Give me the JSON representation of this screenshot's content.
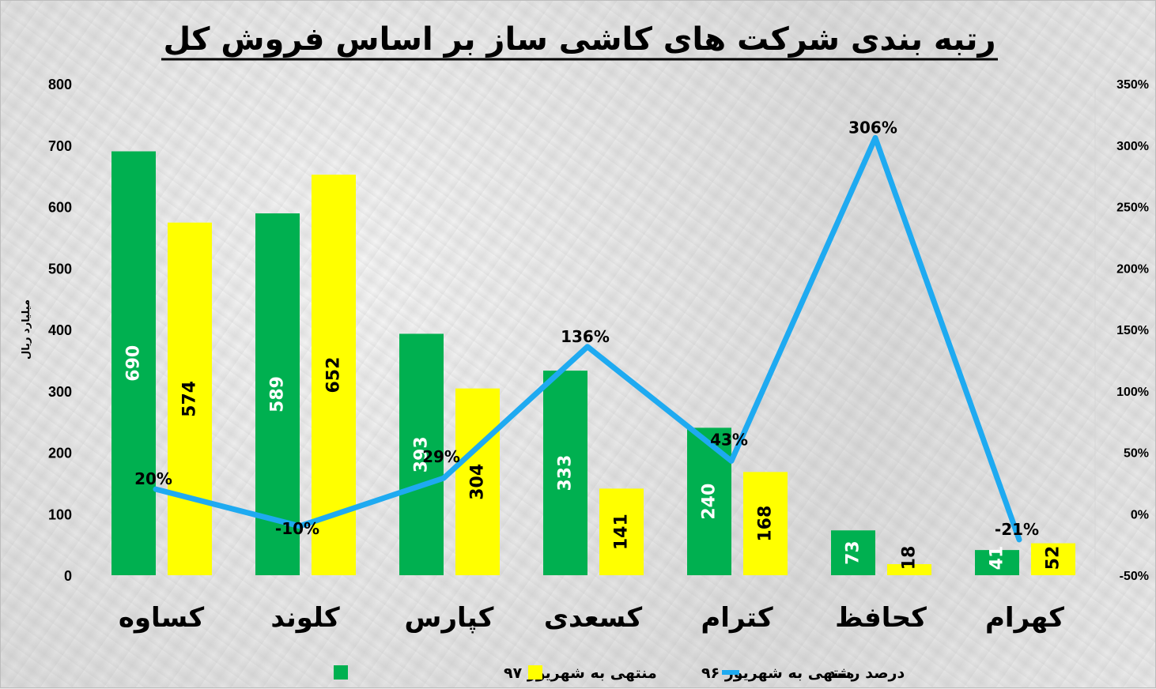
{
  "chart_data": {
    "type": "bar",
    "title": "رتبه بندی شرکت های کاشی ساز بر اساس فروش کل",
    "ylabel": "میلیارد ریال",
    "ylim": [
      0,
      800
    ],
    "y_ticks": [
      "0",
      "100",
      "200",
      "300",
      "400",
      "500",
      "600",
      "700",
      "800"
    ],
    "y2lim": [
      -50,
      350
    ],
    "y2_ticks": [
      "-50%",
      "0%",
      "50%",
      "100%",
      "150%",
      "200%",
      "250%",
      "300%",
      "350%"
    ],
    "categories": [
      "کساوه",
      "کلوند",
      "کپارس",
      "کسعدی",
      "کترام",
      "کحافظ",
      "کهرام"
    ],
    "series": [
      {
        "name": "منتهی به شهریور ۹۷",
        "type": "bar",
        "color": "#00b050",
        "label_color": "#ffffff",
        "values": [
          690,
          589,
          393,
          333,
          240,
          73,
          41
        ]
      },
      {
        "name": "منتهی به شهریور ۹۶",
        "type": "bar",
        "color": "#ffff00",
        "label_color": "#000000",
        "values": [
          574,
          652,
          304,
          141,
          168,
          18,
          52
        ]
      },
      {
        "name": "درصد رشد",
        "type": "line",
        "axis": "secondary",
        "color": "#1eaaf1",
        "values": [
          20,
          -10,
          29,
          136,
          43,
          306,
          -21
        ],
        "labels": [
          "20%",
          "-10%",
          "29%",
          "136%",
          "43%",
          "306%",
          "-21%"
        ]
      }
    ],
    "grid": false,
    "legend_position": "bottom"
  }
}
